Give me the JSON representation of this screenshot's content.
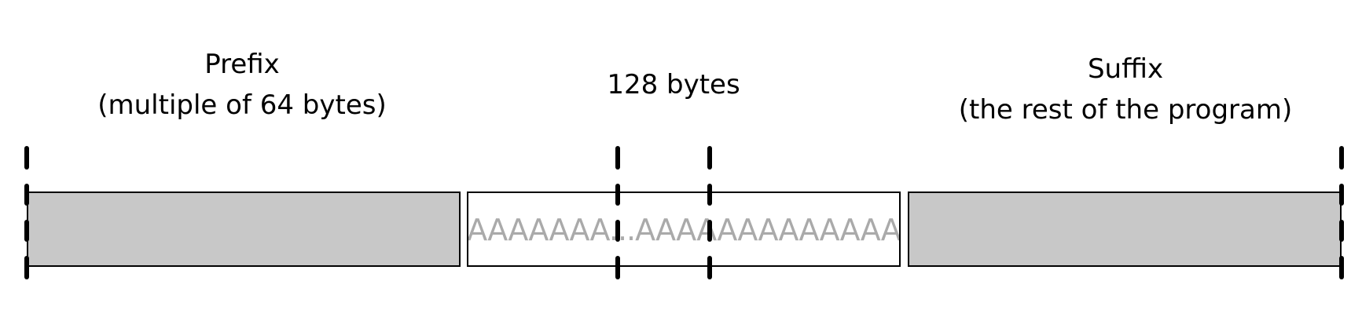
{
  "labels": {
    "prefix": {
      "line1": "Prefix",
      "line2": "(multiple of 64 bytes)"
    },
    "middle": {
      "line1": "128 bytes"
    },
    "suffix": {
      "line1": "Suffix",
      "line2": "(the rest of the program)"
    }
  },
  "blocks": {
    "prefix": {
      "fill": "#c8c8c8"
    },
    "middle": {
      "fill": "#ffffff",
      "text": "AAAAAAAA...AAAAAAAAAAAAAA"
    },
    "suffix": {
      "fill": "#c8c8c8"
    }
  },
  "colors": {
    "outline": "#000000",
    "padding_text": "#aaaaaa"
  }
}
